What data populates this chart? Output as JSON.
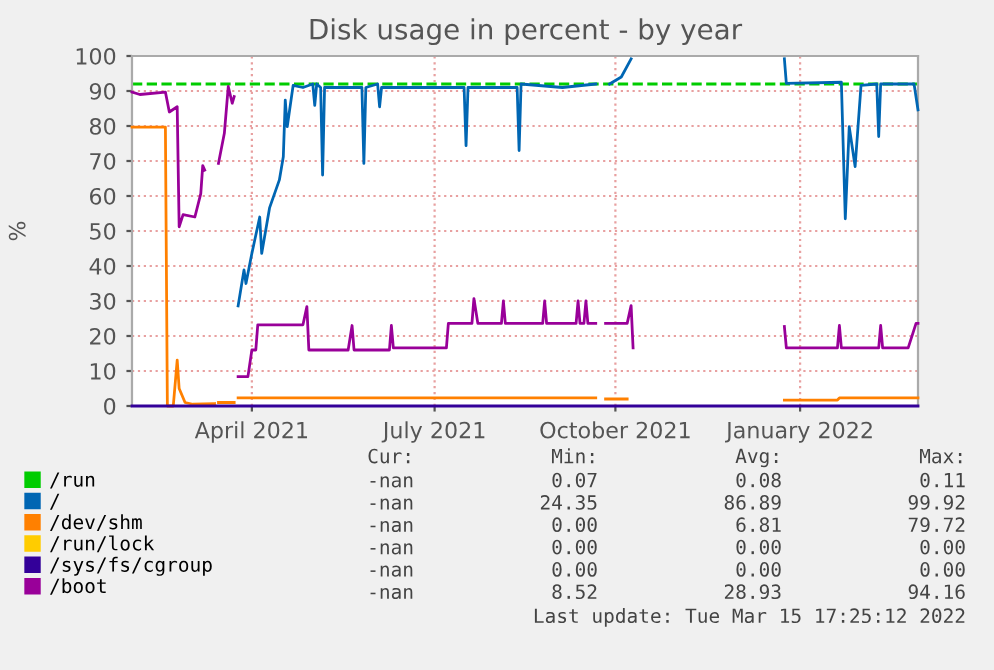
{
  "chart_data": {
    "type": "line",
    "title": "Disk usage in percent - by year",
    "ylabel": "%",
    "xlim": [
      "2021-02-08",
      "2022-03-15"
    ],
    "xticks": [
      {
        "value": "2021-04-10",
        "label": "April 2021"
      },
      {
        "value": "2021-07-12",
        "label": "July 2021"
      },
      {
        "value": "2021-10-12",
        "label": "October 2021"
      },
      {
        "value": "2022-01-14",
        "label": "January 2022"
      }
    ],
    "ylim": [
      0,
      100
    ],
    "yticks": [
      0,
      10,
      20,
      30,
      40,
      50,
      60,
      70,
      80,
      90,
      100
    ],
    "grid": true,
    "legend": "bottom",
    "line_style": "solid",
    "marker": "none",
    "ref_lines": [
      {
        "axis": "y",
        "value": 92,
        "label": null,
        "color": "#00cc00",
        "line_style": "dashed"
      }
    ],
    "series": [
      {
        "name": "/run",
        "color": "#00cc00"
      },
      {
        "name": "/",
        "color": "#0066b3",
        "x": [
          "2021-04-03",
          "2021-04-06",
          "2021-04-07",
          "2021-04-10",
          "2021-04-14",
          "2021-04-15",
          "2021-04-19",
          "2021-04-24",
          "2021-04-26",
          "2021-04-27",
          "2021-04-28",
          "2021-05-01",
          "2021-05-06",
          "2021-05-11",
          "2021-05-12",
          "2021-05-13",
          "2021-05-15",
          "2021-05-16",
          "2021-05-17",
          "2021-06-05",
          "2021-06-06",
          "2021-06-07",
          "2021-06-13",
          "2021-06-14",
          "2021-06-15",
          "2021-07-12",
          "2021-07-27",
          "2021-07-28",
          "2021-07-29",
          "2021-08-23",
          "2021-08-24",
          "2021-08-25",
          "2021-09-15",
          "2021-10-02",
          "2021-10-05",
          "2021-10-09",
          "2021-10-15",
          "2021-10-20",
          "2021-12-01",
          "2022-01-06",
          "2022-01-07",
          "2022-02-04",
          "2022-02-06",
          "2022-02-08",
          "2022-02-11",
          "2022-02-14",
          "2022-02-22",
          "2022-02-23",
          "2022-02-24",
          "2022-03-13",
          "2022-03-15"
        ],
        "values": [
          28.6,
          38.9,
          35,
          43.6,
          54,
          43.6,
          56.6,
          64.6,
          71.2,
          87.4,
          79.8,
          91.6,
          91,
          92,
          85.9,
          92,
          91,
          66,
          91,
          91,
          69.3,
          91,
          92,
          85.5,
          91,
          91,
          91,
          74.4,
          91,
          91,
          73,
          92,
          91,
          92,
          null,
          92,
          94,
          99.2,
          null,
          99.2,
          92.2,
          92.5,
          53.5,
          79.8,
          68.4,
          91.6,
          92,
          77,
          92,
          92,
          84.6
        ]
      },
      {
        "name": "/dev/shm",
        "color": "#ff8000",
        "x": [
          "2021-02-08",
          "2021-02-25",
          "2021-02-26",
          "2021-03-01",
          "2021-03-03",
          "2021-03-04",
          "2021-03-07",
          "2021-03-11",
          "2021-03-22",
          "2021-03-23",
          "2021-03-24",
          "2021-04-01",
          "2021-04-02",
          "2021-04-03",
          "2021-07-12",
          "2021-10-02",
          "2021-10-05",
          "2021-10-07",
          "2021-10-18",
          "2021-10-20",
          "2022-01-06",
          "2022-02-02",
          "2022-02-03",
          "2022-03-15"
        ],
        "values": [
          79.7,
          79.7,
          0,
          0,
          13.1,
          5,
          1,
          0.5,
          0.7,
          null,
          1,
          1,
          null,
          2.3,
          2.3,
          2.3,
          null,
          2,
          2,
          null,
          1.7,
          1.7,
          2.3,
          2.3
        ]
      },
      {
        "name": "/run/lock",
        "color": "#ffcc00"
      },
      {
        "name": "/sys/fs/cgroup",
        "color": "#330099",
        "x": [
          "2021-02-08",
          "2022-03-15"
        ],
        "values": [
          0,
          0
        ]
      },
      {
        "name": "/boot",
        "color": "#990099",
        "x": [
          "2021-02-08",
          "2021-02-12",
          "2021-02-25",
          "2021-02-27",
          "2021-03-03",
          "2021-03-04",
          "2021-03-06",
          "2021-03-12",
          "2021-03-15",
          "2021-03-16",
          "2021-03-17",
          "2021-03-20",
          "2021-03-24",
          "2021-03-27",
          "2021-03-29",
          "2021-03-31",
          "2021-04-01",
          "2021-04-02",
          "2021-04-03",
          "2021-04-08",
          "2021-04-10",
          "2021-04-12",
          "2021-04-13",
          "2021-05-06",
          "2021-05-08",
          "2021-05-09",
          "2021-05-29",
          "2021-05-31",
          "2021-06-01",
          "2021-06-19",
          "2021-06-20",
          "2021-06-21",
          "2021-07-18",
          "2021-07-19",
          "2021-07-31",
          "2021-08-01",
          "2021-08-03",
          "2021-08-15",
          "2021-08-16",
          "2021-08-17",
          "2021-09-05",
          "2021-09-06",
          "2021-09-07",
          "2021-09-22",
          "2021-09-23",
          "2021-09-24",
          "2021-09-26",
          "2021-09-27",
          "2021-09-28",
          "2021-10-02",
          "2021-10-05",
          "2021-10-07",
          "2021-10-18",
          "2021-10-20",
          "2021-10-21",
          "2021-10-25",
          "2022-01-06",
          "2022-01-07",
          "2022-02-02",
          "2022-02-03",
          "2022-02-04",
          "2022-02-23",
          "2022-02-24",
          "2022-02-25",
          "2022-03-10",
          "2022-03-14",
          "2022-03-15"
        ],
        "values": [
          89.7,
          89,
          89.7,
          84,
          85.5,
          51.2,
          54.7,
          54,
          60.7,
          68.7,
          67.4,
          null,
          69.3,
          77.9,
          91.3,
          86.5,
          88.4,
          null,
          8.4,
          8.4,
          16,
          16,
          23.2,
          23.2,
          28.4,
          16,
          16,
          23,
          16,
          16,
          23,
          16.6,
          16.6,
          23.6,
          23.6,
          30.7,
          23.6,
          23.6,
          30,
          23.6,
          23.6,
          30,
          23.6,
          23.6,
          30,
          23.6,
          23.6,
          30,
          23.6,
          23.6,
          null,
          23.6,
          23.6,
          28.7,
          16.6,
          null,
          22.7,
          16.6,
          16.6,
          23,
          16.6,
          16.6,
          23,
          16.6,
          16.6,
          23.6,
          23.6
        ]
      }
    ],
    "annotations": [
      "Cur:",
      "Min:",
      "Avg:",
      "Max:",
      "-nan",
      "0.07",
      "0.08",
      "0.11",
      "-nan",
      "24.35",
      "86.89",
      "99.92",
      "-nan",
      "0.00",
      "6.81",
      "79.72",
      "-nan",
      "0.00",
      "0.00",
      "0.00",
      "-nan",
      "0.00",
      "0.00",
      "0.00",
      "-nan",
      "8.52",
      "28.93",
      "94.16",
      "Last update: Tue Mar 15 17:25:12 2022"
    ]
  }
}
